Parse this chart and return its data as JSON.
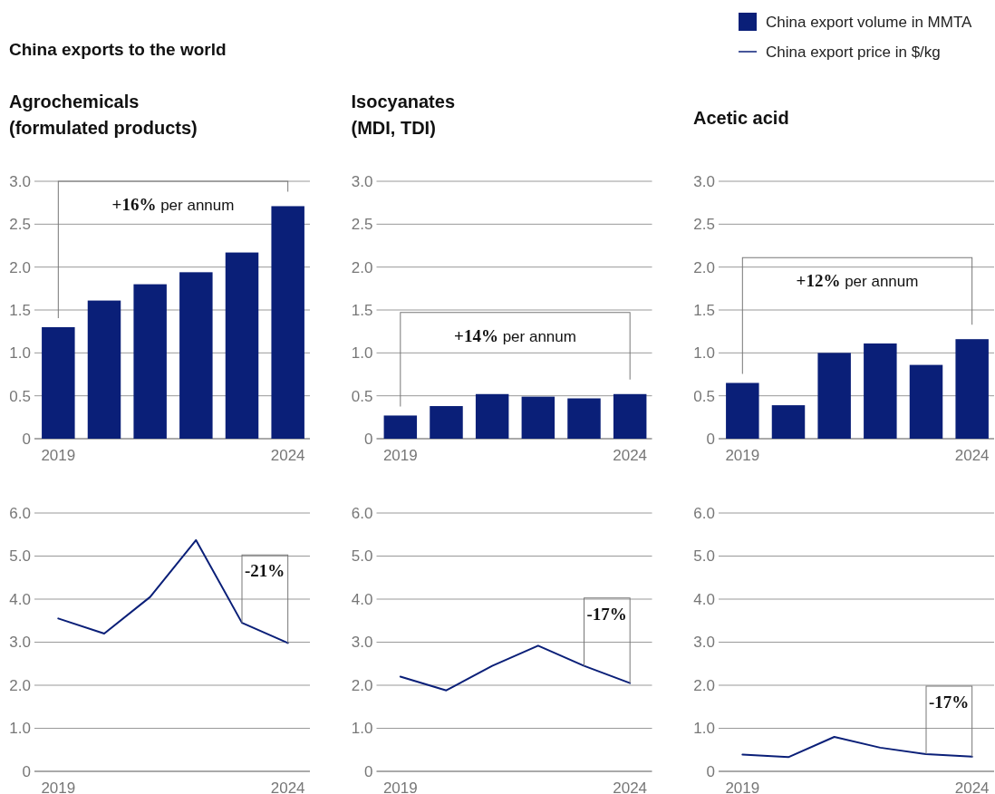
{
  "chart_data": [
    {
      "type": "bar",
      "title": "China exports to the world",
      "subtitle": "Agrochemicals\n(formulated products)",
      "categories": [
        "2019",
        null,
        null,
        null,
        null,
        "2024"
      ],
      "series": [
        {
          "name": "China export volume in MMTA",
          "color": "#0a1f78",
          "values": [
            1.3,
            1.61,
            1.8,
            1.94,
            2.17,
            2.71
          ]
        }
      ],
      "ylim": [
        0,
        3
      ],
      "yticks": [
        0,
        0.5,
        {
          "value": 1,
          "label": "1.0"
        },
        1.5,
        {
          "value": 2,
          "label": "2.0"
        },
        2.5,
        {
          "value": 3,
          "label": "3.0"
        }
      ],
      "grid": "y",
      "legend": "top right",
      "annotations": [
        "+16% per annum"
      ]
    },
    {
      "type": "bar",
      "subtitle": "Isocyanates\n(MDI, TDI)",
      "categories": [
        "2019",
        null,
        null,
        null,
        null,
        "2024"
      ],
      "series": [
        {
          "color": "#0a1f78",
          "values": [
            0.27,
            0.38,
            0.52,
            0.49,
            0.47,
            0.52
          ]
        }
      ],
      "ylim": [
        0,
        3
      ],
      "yticks": [
        0,
        0.5,
        {
          "value": 1,
          "label": "1.0"
        },
        1.5,
        {
          "value": 2,
          "label": "2.0"
        },
        2.5,
        {
          "value": 3,
          "label": "3.0"
        }
      ],
      "grid": "y",
      "annotations": [
        "+14% per annum"
      ]
    },
    {
      "type": "bar",
      "subtitle": "Acetic acid",
      "categories": [
        "2019",
        null,
        null,
        null,
        null,
        "2024"
      ],
      "series": [
        {
          "color": "#0a1f78",
          "values": [
            0.65,
            0.39,
            1.0,
            1.11,
            0.86,
            1.16
          ]
        }
      ],
      "ylim": [
        0,
        3
      ],
      "yticks": [
        0,
        0.5,
        {
          "value": 1,
          "label": "1.0"
        },
        1.5,
        {
          "value": 2,
          "label": "2.0"
        },
        2.5,
        {
          "value": 3,
          "label": "3.0"
        }
      ],
      "grid": "y",
      "annotations": [
        "+12% per annum"
      ]
    },
    {
      "type": "line",
      "categories": [
        "2019",
        null,
        null,
        null,
        null,
        "2024"
      ],
      "series": [
        {
          "name": "China export price in $/kg",
          "color": "#0a1f78",
          "values": [
            3.55,
            3.2,
            4.05,
            5.37,
            3.45,
            2.98
          ]
        }
      ],
      "ylim": [
        0,
        6
      ],
      "yticks": [
        0,
        {
          "value": 1,
          "label": "1.0"
        },
        {
          "value": 2,
          "label": "2.0"
        },
        {
          "value": 3,
          "label": "3.0"
        },
        {
          "value": 4,
          "label": "4.0"
        },
        {
          "value": 5,
          "label": "5.0"
        },
        {
          "value": 6,
          "label": "6.0"
        }
      ],
      "grid": "y",
      "legend": "top right",
      "annotations": [
        "-21%"
      ]
    },
    {
      "type": "line",
      "categories": [
        "2019",
        null,
        null,
        null,
        null,
        "2024"
      ],
      "series": [
        {
          "color": "#0a1f78",
          "values": [
            2.2,
            1.88,
            2.45,
            2.92,
            2.45,
            2.05
          ]
        }
      ],
      "ylim": [
        0,
        6
      ],
      "yticks": [
        0,
        {
          "value": 1,
          "label": "1.0"
        },
        {
          "value": 2,
          "label": "2.0"
        },
        {
          "value": 3,
          "label": "3.0"
        },
        {
          "value": 4,
          "label": "4.0"
        },
        {
          "value": 5,
          "label": "5.0"
        },
        {
          "value": 6,
          "label": "6.0"
        }
      ],
      "grid": "y",
      "annotations": [
        "-17%"
      ]
    },
    {
      "type": "line",
      "categories": [
        "2019",
        null,
        null,
        null,
        null,
        "2024"
      ],
      "series": [
        {
          "color": "#0a1f78",
          "values": [
            0.39,
            0.33,
            0.8,
            0.55,
            0.4,
            0.34
          ]
        }
      ],
      "ylim": [
        0,
        6
      ],
      "yticks": [
        0,
        {
          "value": 1,
          "label": "1.0"
        },
        {
          "value": 2,
          "label": "2.0"
        },
        {
          "value": 3,
          "label": "3.0"
        },
        {
          "value": 4,
          "label": "4.0"
        },
        {
          "value": 5,
          "label": "5.0"
        },
        {
          "value": 6,
          "label": "6.0"
        }
      ],
      "grid": "y",
      "annotations": [
        "-17%"
      ]
    }
  ]
}
